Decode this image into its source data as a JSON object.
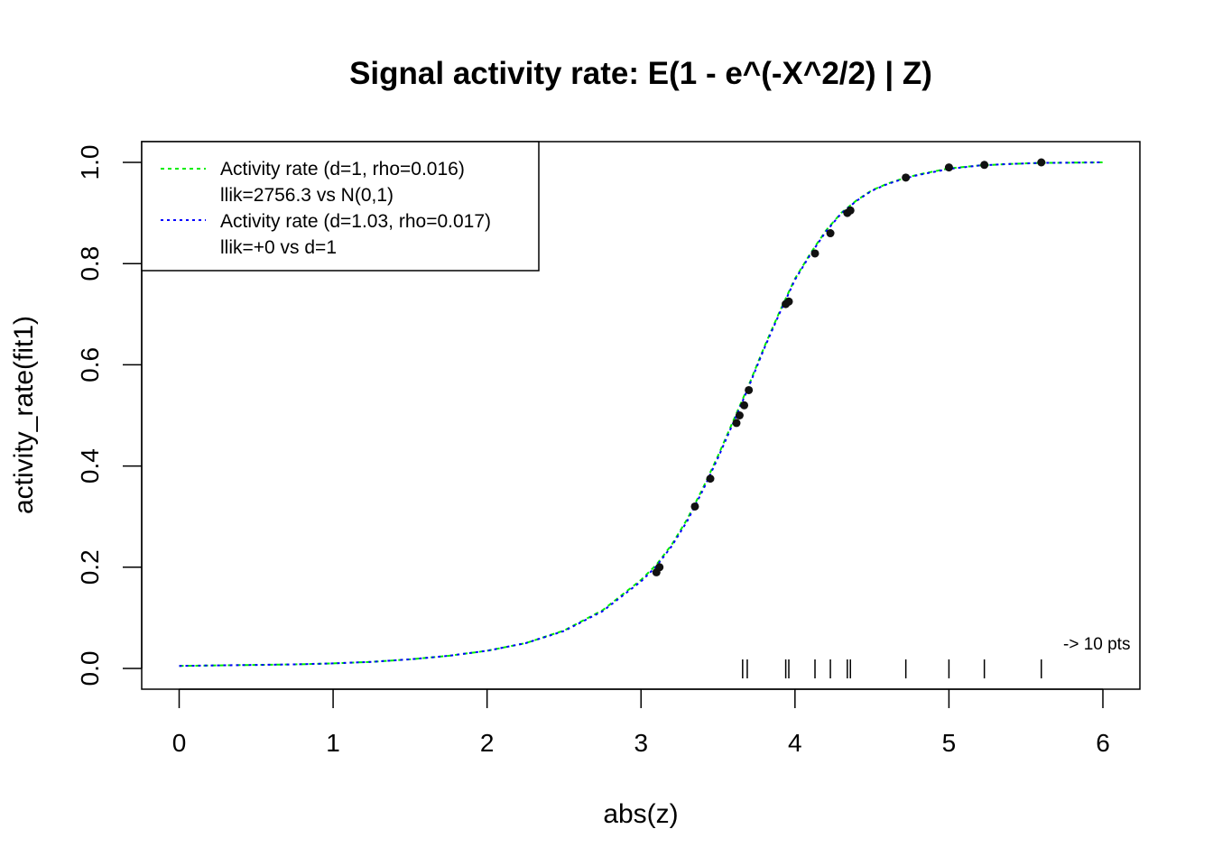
{
  "chart_data": {
    "type": "line",
    "title": "Signal activity rate: E(1 - e^(-X^2/2) | Z)",
    "xlabel": "abs(z)",
    "ylabel": "activity_rate(fit1)",
    "xlim": [
      0,
      6
    ],
    "ylim": [
      0,
      1
    ],
    "x_ticks": [
      "0",
      "1",
      "2",
      "3",
      "4",
      "5",
      "6"
    ],
    "y_ticks": [
      "0.0",
      "0.2",
      "0.4",
      "0.6",
      "0.8",
      "1.0"
    ],
    "legend_position": "top-left",
    "legend": [
      {
        "line1": "Activity rate (d=1, rho=0.016)",
        "line2": "llik=2756.3 vs N(0,1)",
        "color": "#00ee00"
      },
      {
        "line1": "Activity rate (d=1.03, rho=0.017)",
        "line2": "llik=+0 vs d=1",
        "color": "#0000ff"
      }
    ],
    "series": [
      {
        "color": "#00ee00",
        "style": "dashed",
        "x": [
          0,
          0.25,
          0.5,
          0.75,
          1.0,
          1.25,
          1.5,
          1.75,
          2.0,
          2.25,
          2.5,
          2.75,
          3.0,
          3.1,
          3.2,
          3.3,
          3.4,
          3.5,
          3.6,
          3.7,
          3.8,
          3.9,
          4.0,
          4.1,
          4.2,
          4.3,
          4.4,
          4.5,
          4.6,
          4.7,
          4.8,
          5.0,
          5.2,
          5.4,
          5.6,
          5.8,
          6.0
        ],
        "y": [
          0.005,
          0.006,
          0.007,
          0.008,
          0.01,
          0.013,
          0.018,
          0.025,
          0.035,
          0.05,
          0.075,
          0.115,
          0.175,
          0.205,
          0.245,
          0.295,
          0.355,
          0.42,
          0.49,
          0.56,
          0.635,
          0.705,
          0.77,
          0.82,
          0.865,
          0.9,
          0.925,
          0.945,
          0.958,
          0.968,
          0.976,
          0.988,
          0.994,
          0.997,
          0.999,
          0.9995,
          1.0
        ]
      },
      {
        "color": "#0000ff",
        "style": "dotted",
        "x": [
          0,
          0.25,
          0.5,
          0.75,
          1.0,
          1.25,
          1.5,
          1.75,
          2.0,
          2.25,
          2.5,
          2.75,
          3.0,
          3.1,
          3.2,
          3.3,
          3.4,
          3.5,
          3.6,
          3.7,
          3.8,
          3.9,
          4.0,
          4.1,
          4.2,
          4.3,
          4.4,
          4.5,
          4.6,
          4.7,
          4.8,
          5.0,
          5.2,
          5.4,
          5.6,
          5.8,
          6.0
        ],
        "y": [
          0.005,
          0.006,
          0.007,
          0.008,
          0.01,
          0.013,
          0.018,
          0.025,
          0.035,
          0.05,
          0.074,
          0.113,
          0.172,
          0.202,
          0.242,
          0.291,
          0.351,
          0.416,
          0.486,
          0.557,
          0.632,
          0.702,
          0.768,
          0.818,
          0.863,
          0.899,
          0.924,
          0.944,
          0.957,
          0.967,
          0.975,
          0.987,
          0.994,
          0.997,
          0.999,
          0.9995,
          1.0
        ]
      }
    ],
    "points": {
      "color": "#111111",
      "x": [
        3.1,
        3.12,
        3.35,
        3.45,
        3.62,
        3.64,
        3.67,
        3.7,
        3.94,
        3.96,
        4.13,
        4.23,
        4.34,
        4.36,
        4.72,
        5.0,
        5.23,
        5.6
      ],
      "y": [
        0.19,
        0.2,
        0.32,
        0.375,
        0.485,
        0.5,
        0.52,
        0.55,
        0.72,
        0.725,
        0.82,
        0.86,
        0.9,
        0.905,
        0.97,
        0.99,
        0.995,
        1.0
      ]
    },
    "rug": [
      3.66,
      3.69,
      3.94,
      3.96,
      4.13,
      4.23,
      4.34,
      4.36,
      4.72,
      5.0,
      5.23,
      5.6
    ],
    "annotation": "-> 10 pts"
  }
}
